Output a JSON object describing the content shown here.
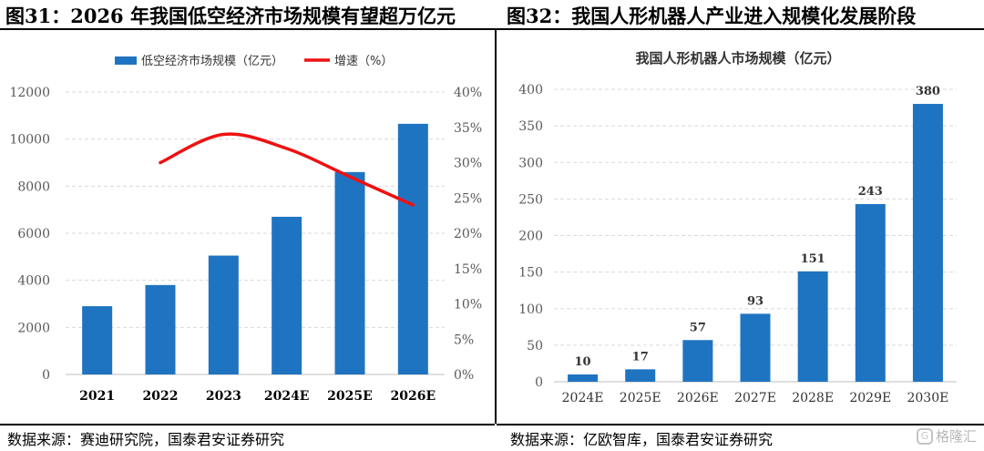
{
  "left_figure": {
    "title": "图31：2026 年我国低空经济市场规模有望超万亿元",
    "source": "数据来源：赛迪研究院，国泰君安证券研究"
  },
  "right_figure": {
    "title": "图32：我国人形机器人产业进入规模化发展阶段",
    "source": "数据来源：亿欧智库，国泰君安证券研究"
  },
  "watermark": {
    "text": "格隆汇",
    "logo": "G"
  },
  "colors": {
    "bar": "#1f74c1",
    "line": "#ee1111",
    "grid": "#d9d9d9"
  },
  "chart_data": [
    {
      "type": "bar+line",
      "title": "",
      "categories": [
        "2021",
        "2022",
        "2023",
        "2024E",
        "2025E",
        "2026E"
      ],
      "series": [
        {
          "name": "低空经济市场规模（亿元）",
          "type": "bar",
          "axis": "left",
          "values": [
            2900,
            3800,
            5050,
            6700,
            8600,
            10650
          ]
        },
        {
          "name": "增速（%）",
          "type": "line",
          "axis": "right",
          "smooth": true,
          "values": [
            null,
            30.0,
            34.0,
            32.0,
            28.0,
            24.0
          ]
        }
      ],
      "y_left": {
        "min": 0,
        "max": 12000,
        "ticks": [
          "0",
          "2000",
          "4000",
          "6000",
          "8000",
          "10000",
          "12000"
        ]
      },
      "y_right": {
        "min": 0,
        "max": 40,
        "ticks": [
          "0%",
          "5%",
          "10%",
          "15%",
          "20%",
          "25%",
          "30%",
          "35%",
          "40%"
        ]
      },
      "grid": true,
      "legend_position": "top"
    },
    {
      "type": "bar",
      "title": "我国人形机器人市场规模（亿元）",
      "categories": [
        "2024E",
        "2025E",
        "2026E",
        "2027E",
        "2028E",
        "2029E",
        "2030E"
      ],
      "values": [
        10,
        17,
        57,
        93,
        151,
        243,
        380
      ],
      "data_labels": [
        "10",
        "17",
        "57",
        "93",
        "151",
        "243",
        "380"
      ],
      "y": {
        "min": 0,
        "max": 400,
        "ticks": [
          "0",
          "50",
          "100",
          "150",
          "200",
          "250",
          "300",
          "350",
          "400"
        ]
      },
      "grid": true
    }
  ]
}
